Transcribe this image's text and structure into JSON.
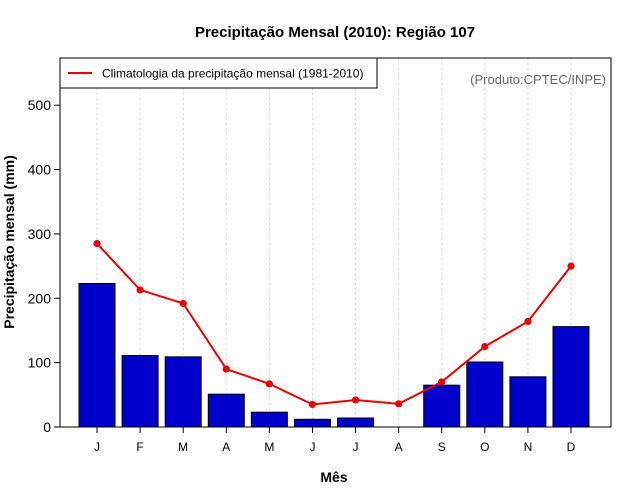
{
  "chart_data": {
    "type": "bar",
    "title": "Precipitação Mensal (2010): Região 107",
    "xlabel": "Mês",
    "ylabel": "Precipitação mensal (mm)",
    "ylim": [
      0,
      580
    ],
    "yticks": [
      0,
      100,
      200,
      300,
      400,
      500
    ],
    "grid": "vertical-dotted",
    "categories": [
      "J",
      "F",
      "M",
      "A",
      "M",
      "J",
      "J",
      "A",
      "S",
      "O",
      "N",
      "D"
    ],
    "series": [
      {
        "name": "Precipitação mensal (2010)",
        "kind": "bar",
        "color": "#0000cc",
        "values": [
          223,
          111,
          109,
          51,
          23,
          12,
          14,
          0,
          65,
          101,
          78,
          156
        ]
      },
      {
        "name": "Climatologia da precipitação mensal (1981-2010)",
        "kind": "line",
        "color": "#ee0000",
        "values": [
          285,
          213,
          192,
          90,
          67,
          35,
          42,
          36,
          70,
          125,
          164,
          250
        ]
      }
    ],
    "legend": {
      "position": "top-left",
      "entries": [
        "Climatologia da precipitação mensal (1981-2010)"
      ]
    },
    "annotation": "(Produto:CPTEC/INPE)"
  }
}
